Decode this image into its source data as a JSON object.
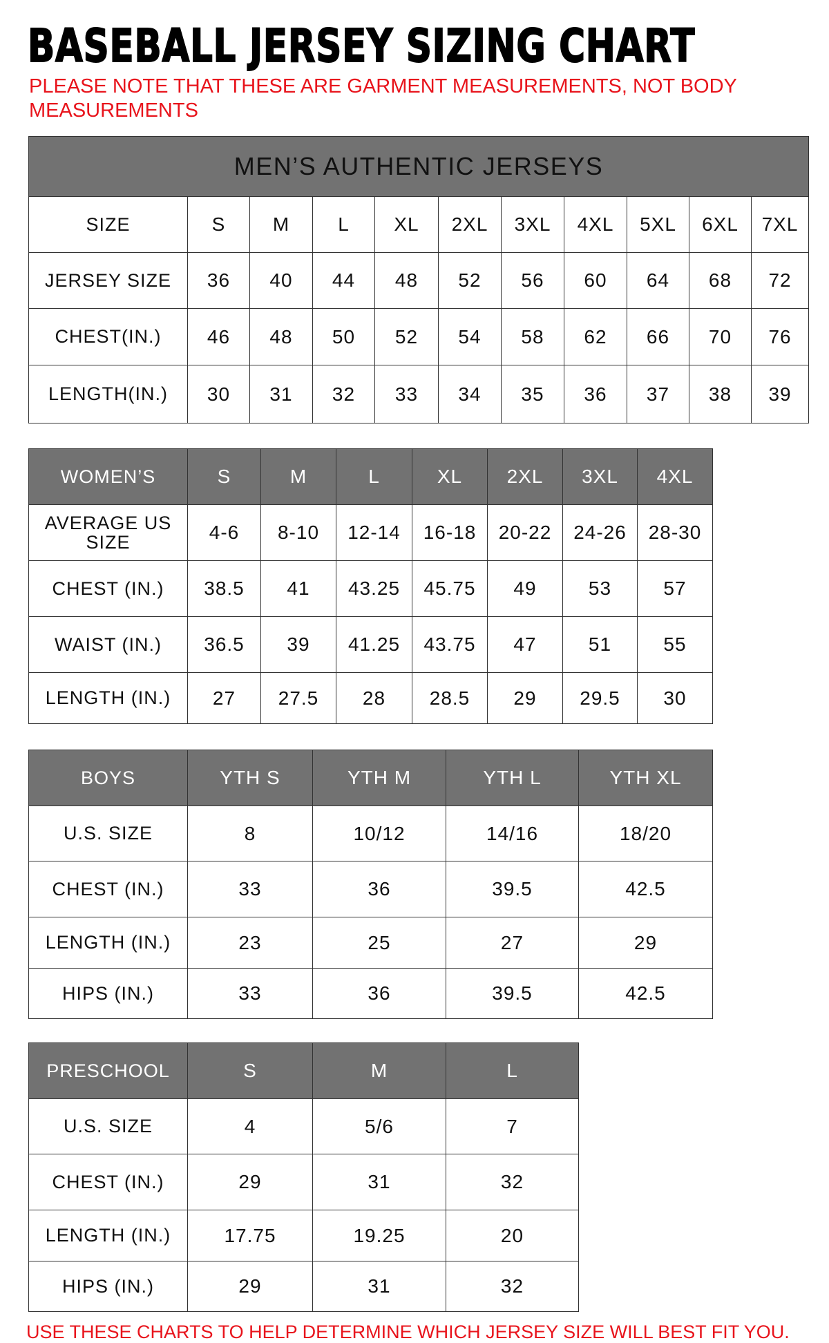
{
  "title": "BASEBALL JERSEY SIZING CHART",
  "note": "PLEASE NOTE THAT THESE ARE GARMENT MEASUREMENTS, NOT BODY MEASUREMENTS",
  "footer": "USE THESE CHARTS TO HELP DETERMINE WHICH JERSEY SIZE WILL BEST FIT YOU.",
  "colors": {
    "header_bg": "#727272",
    "note_red": "#e8141c"
  },
  "tables": [
    {
      "caption": "MEN’S AUTHENTIC JERSEYS",
      "header": [
        "SIZE",
        "S",
        "M",
        "L",
        "XL",
        "2XL",
        "3XL",
        "4XL",
        "5XL",
        "6XL",
        "7XL"
      ],
      "header_style": "plain",
      "rows": [
        [
          "JERSEY SIZE",
          "36",
          "40",
          "44",
          "48",
          "52",
          "56",
          "60",
          "64",
          "68",
          "72"
        ],
        [
          "CHEST(IN.)",
          "46",
          "48",
          "50",
          "52",
          "54",
          "58",
          "62",
          "66",
          "70",
          "76"
        ],
        [
          "LENGTH(IN.)",
          "30",
          "31",
          "32",
          "33",
          "34",
          "35",
          "36",
          "37",
          "38",
          "39"
        ]
      ]
    },
    {
      "header": [
        "WOMEN’S",
        "S",
        "M",
        "L",
        "XL",
        "2XL",
        "3XL",
        "4XL"
      ],
      "header_style": "gray",
      "rows": [
        [
          "AVERAGE US SIZE",
          "4-6",
          "8-10",
          "12-14",
          "16-18",
          "20-22",
          "24-26",
          "28-30"
        ],
        [
          "CHEST (IN.)",
          "38.5",
          "41",
          "43.25",
          "45.75",
          "49",
          "53",
          "57"
        ],
        [
          "WAIST (IN.)",
          "36.5",
          "39",
          "41.25",
          "43.75",
          "47",
          "51",
          "55"
        ],
        [
          "LENGTH (IN.)",
          "27",
          "27.5",
          "28",
          "28.5",
          "29",
          "29.5",
          "30"
        ]
      ]
    },
    {
      "header": [
        "BOYS",
        "YTH S",
        "YTH M",
        "YTH L",
        "YTH XL"
      ],
      "header_style": "gray",
      "rows": [
        [
          "U.S. SIZE",
          "8",
          "10/12",
          "14/16",
          "18/20"
        ],
        [
          "CHEST (IN.)",
          "33",
          "36",
          "39.5",
          "42.5"
        ],
        [
          "LENGTH (IN.)",
          "23",
          "25",
          "27",
          "29"
        ],
        [
          "HIPS (IN.)",
          "33",
          "36",
          "39.5",
          "42.5"
        ]
      ]
    },
    {
      "header": [
        "PRESCHOOL",
        "S",
        "M",
        "L"
      ],
      "header_style": "gray",
      "rows": [
        [
          "U.S. SIZE",
          "4",
          "5/6",
          "7"
        ],
        [
          "CHEST (IN.)",
          "29",
          "31",
          "32"
        ],
        [
          "LENGTH (IN.)",
          "17.75",
          "19.25",
          "20"
        ],
        [
          "HIPS (IN.)",
          "29",
          "31",
          "32"
        ]
      ]
    }
  ]
}
